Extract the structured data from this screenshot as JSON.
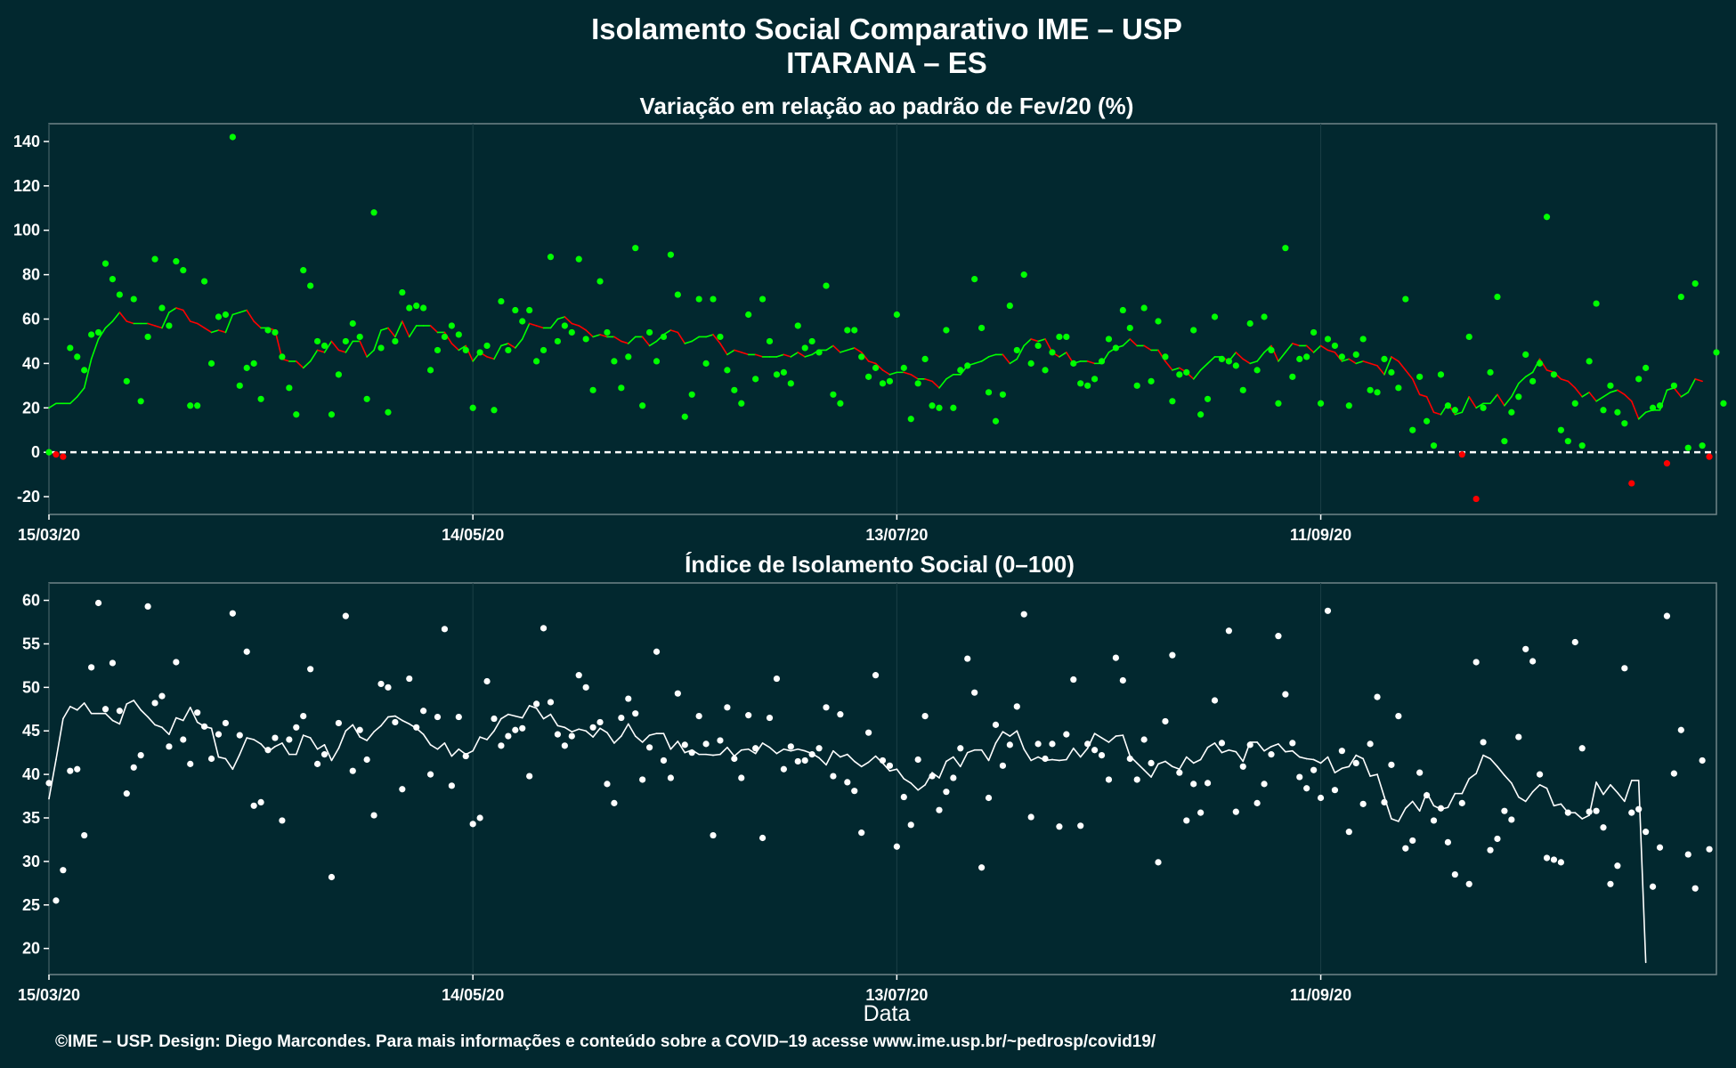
{
  "title_line1": "Isolamento Social Comparativo IME – USP",
  "title_line2": "ITARANA – ES",
  "xlabel": "Data",
  "footer": "©IME – USP. Design: Diego Marcondes. Para mais informações e conteúdo sobre a COVID–19 acesse www.ime.usp.br/~pedrosp/covid19/",
  "colors": {
    "background": "#02282f",
    "positive": "#00ff00",
    "negative": "#ff0000",
    "index_series": "#ffffff",
    "panel_border": "#6f8488",
    "grid": "#1b3f46"
  },
  "chart_data": [
    {
      "type": "scatter",
      "title": "Variação em relação ao padrão de Fev/20 (%)",
      "x_start": "15/03/20",
      "x_ticks": [
        {
          "day": 0,
          "label": "15/03/20"
        },
        {
          "day": 60,
          "label": "14/05/20"
        },
        {
          "day": 120,
          "label": "13/07/20"
        },
        {
          "day": 180,
          "label": "11/09/20"
        }
      ],
      "xlim": [
        0,
        236
      ],
      "ylim": [
        -28,
        148
      ],
      "y_ticks": [
        -20,
        0,
        20,
        40,
        60,
        80,
        100,
        120,
        140
      ],
      "reference_line": 0,
      "series": [
        {
          "kind": "points",
          "values": [
            0,
            -1,
            -2,
            47,
            43,
            37,
            53,
            54,
            85,
            78,
            71,
            32,
            69,
            23,
            52,
            87,
            65,
            57,
            86,
            82,
            21,
            21,
            77,
            40,
            61,
            62,
            142,
            30,
            38,
            40,
            24,
            55,
            54,
            43,
            29,
            17,
            82,
            75,
            50,
            48,
            17,
            35,
            50,
            58,
            52,
            24,
            108,
            47,
            18,
            50,
            72,
            65,
            66,
            65,
            37,
            46,
            52,
            57,
            53,
            46,
            20,
            45,
            48,
            19,
            68,
            46,
            64,
            59,
            64,
            41,
            46,
            88,
            50,
            57,
            54,
            87,
            51,
            28,
            77,
            54,
            41,
            29,
            43,
            92,
            21,
            54,
            41,
            52,
            89,
            71,
            16,
            26,
            69,
            40,
            69,
            52,
            37,
            28,
            22,
            62,
            33,
            69,
            50,
            35,
            36,
            31,
            57,
            47,
            50,
            45,
            75,
            26,
            22,
            55,
            55,
            43,
            34,
            38,
            31,
            32,
            62,
            38,
            15,
            31,
            42,
            21,
            20,
            55,
            20,
            37,
            39,
            78,
            56,
            27,
            14,
            26,
            66,
            46,
            80,
            40,
            48,
            37,
            45,
            52,
            52,
            40,
            31,
            30,
            33,
            41,
            51,
            47,
            64,
            56,
            30,
            65,
            32,
            59,
            43,
            23,
            35,
            36,
            55,
            17,
            24,
            61,
            42,
            41,
            39,
            28,
            58,
            37,
            61,
            46,
            22,
            92,
            34,
            42,
            43,
            54,
            22,
            51,
            48,
            43,
            21,
            44,
            51,
            28,
            27,
            42,
            36,
            29,
            69,
            10,
            34,
            14,
            3,
            35,
            21,
            19,
            -1,
            52,
            -21,
            20,
            36,
            70,
            5,
            18,
            25,
            44,
            32,
            40,
            106,
            35,
            10,
            5,
            22,
            3,
            41,
            67,
            19,
            30,
            18,
            13,
            -14,
            33,
            38,
            20,
            21,
            -5,
            30,
            70,
            2,
            76,
            3,
            -2,
            45,
            22
          ]
        },
        {
          "kind": "moving_average",
          "values": [
            20,
            22,
            22,
            22,
            25,
            29,
            42,
            51,
            56,
            59,
            63,
            59,
            58,
            58,
            58,
            57,
            56,
            63,
            65,
            64,
            59,
            58,
            56,
            54,
            55,
            54,
            62,
            63,
            64,
            59,
            56,
            56,
            55,
            42,
            41,
            41,
            38,
            41,
            46,
            45,
            50,
            46,
            45,
            50,
            50,
            43,
            46,
            55,
            56,
            52,
            59,
            52,
            57,
            57,
            57,
            54,
            54,
            49,
            46,
            48,
            41,
            45,
            43,
            42,
            48,
            49,
            47,
            51,
            58,
            57,
            56,
            56,
            60,
            61,
            58,
            57,
            55,
            52,
            53,
            52,
            52,
            50,
            49,
            52,
            52,
            48,
            50,
            53,
            55,
            54,
            49,
            50,
            52,
            52,
            53,
            49,
            44,
            46,
            45,
            44,
            44,
            43,
            43,
            43,
            44,
            43,
            45,
            43,
            44,
            46,
            46,
            48,
            45,
            46,
            47,
            45,
            41,
            40,
            37,
            35,
            36,
            36,
            35,
            33,
            33,
            32,
            29,
            33,
            35,
            35,
            39,
            40,
            41,
            43,
            44,
            44,
            40,
            42,
            48,
            51,
            50,
            51,
            45,
            43,
            45,
            40,
            41,
            41,
            40,
            40,
            45,
            47,
            48,
            51,
            48,
            48,
            46,
            46,
            41,
            37,
            38,
            36,
            33,
            37,
            40,
            43,
            43,
            41,
            45,
            42,
            40,
            41,
            45,
            48,
            41,
            45,
            49,
            48,
            48,
            45,
            48,
            46,
            45,
            41,
            42,
            40,
            41,
            40,
            39,
            35,
            43,
            41,
            37,
            33,
            26,
            25,
            18,
            17,
            22,
            17,
            18,
            25,
            20,
            22,
            22,
            26,
            21,
            25,
            31,
            34,
            36,
            42,
            37,
            36,
            33,
            32,
            29,
            25,
            27,
            23,
            25,
            27,
            28,
            26,
            23,
            15,
            18,
            19,
            19,
            28,
            29,
            25,
            27,
            33,
            32
          ]
        }
      ]
    },
    {
      "type": "scatter",
      "title": "Índice de Isolamento Social (0–100)",
      "x_start": "15/03/20",
      "x_ticks": [
        {
          "day": 0,
          "label": "15/03/20"
        },
        {
          "day": 60,
          "label": "14/05/20"
        },
        {
          "day": 120,
          "label": "13/07/20"
        },
        {
          "day": 180,
          "label": "11/09/20"
        }
      ],
      "xlim": [
        0,
        236
      ],
      "ylim": [
        17,
        62
      ],
      "y_ticks": [
        20,
        25,
        30,
        35,
        40,
        45,
        50,
        55,
        60
      ],
      "series": [
        {
          "kind": "points",
          "values": [
            39.0,
            25.5,
            29.0,
            40.4,
            40.6,
            33.0,
            52.3,
            59.7,
            47.5,
            52.8,
            47.3,
            37.8,
            40.8,
            42.2,
            59.3,
            48.2,
            49.0,
            43.2,
            52.9,
            44.0,
            41.2,
            47.1,
            45.5,
            41.8,
            44.6,
            45.9,
            58.5,
            44.5,
            54.1,
            36.4,
            36.8,
            42.8,
            44.2,
            34.7,
            44.0,
            45.4,
            46.7,
            52.1,
            41.2,
            42.3,
            28.2,
            45.9,
            58.2,
            40.4,
            45.1,
            41.7,
            35.3,
            50.4,
            50.0,
            46.0,
            38.3,
            51.0,
            45.4,
            47.3,
            40.0,
            46.6,
            56.7,
            38.7,
            46.6,
            42.1,
            34.3,
            35.0,
            50.7,
            46.4,
            43.3,
            44.4,
            45.1,
            45.3,
            39.8,
            48.1,
            56.8,
            48.3,
            44.6,
            43.3,
            44.4,
            51.4,
            50.0,
            45.4,
            46.0,
            38.9,
            36.7,
            46.5,
            48.7,
            47.0,
            39.4,
            43.1,
            54.1,
            41.6,
            39.6,
            49.3,
            43.4,
            42.5,
            46.7,
            43.5,
            33.0,
            43.9,
            47.7,
            41.8,
            39.6,
            46.8,
            43.0,
            32.7,
            46.5,
            51.0,
            40.6,
            43.2,
            41.5,
            41.6,
            42.3,
            43.0,
            47.7,
            39.8,
            46.9,
            39.1,
            38.1,
            33.3,
            44.8,
            51.4,
            41.6,
            41.0,
            31.7,
            37.4,
            34.2,
            41.7,
            46.7,
            39.8,
            35.9,
            38.0,
            39.6,
            43.0,
            53.3,
            49.4,
            29.3,
            37.3,
            45.7,
            41.0,
            43.4,
            47.8,
            58.4,
            35.1,
            43.5,
            41.8,
            43.5,
            34.0,
            44.6,
            50.9,
            34.1,
            43.5,
            42.8,
            42.2,
            39.4,
            53.4,
            50.8,
            41.8,
            39.4,
            44.0,
            41.3,
            29.9,
            46.1,
            53.7,
            40.2,
            34.7,
            38.9,
            35.6,
            39.0,
            48.5,
            43.6,
            56.5,
            35.7,
            40.9,
            43.4,
            36.7,
            38.9,
            42.3,
            55.9,
            49.2,
            43.6,
            39.7,
            38.4,
            40.5,
            37.3,
            58.8,
            38.2,
            42.7,
            33.4,
            41.3,
            36.6,
            43.5,
            48.9,
            36.8,
            41.1,
            46.7,
            31.5,
            32.4,
            40.2,
            37.6,
            34.7,
            36.1,
            32.2,
            28.5,
            36.7,
            27.4,
            52.9,
            43.7,
            31.3,
            32.6,
            35.8,
            34.8,
            44.3,
            54.4,
            53.0,
            40.0,
            30.4,
            30.2,
            29.9,
            35.6,
            55.2,
            43.0,
            35.7,
            35.8,
            33.9,
            27.4,
            29.5,
            52.2,
            35.6,
            36.0,
            33.4,
            27.1,
            31.6,
            58.2,
            40.1,
            45.1,
            30.8,
            26.9,
            41.6,
            31.4
          ]
        },
        {
          "kind": "moving_average",
          "values": [
            37.2,
            41.7,
            46.4,
            47.8,
            47.4,
            48.2,
            47.0,
            47.0,
            47.0,
            46.2,
            45.8,
            48.1,
            48.5,
            47.4,
            46.6,
            45.7,
            45.4,
            44.6,
            46.5,
            46.2,
            47.7,
            46.0,
            45.5,
            45.3,
            42.0,
            41.8,
            40.6,
            42.3,
            44.2,
            44.0,
            43.5,
            42.6,
            43.2,
            43.6,
            42.3,
            42.3,
            44.5,
            44.2,
            42.9,
            43.4,
            41.6,
            43.0,
            45.0,
            45.7,
            44.3,
            43.9,
            44.9,
            45.6,
            46.6,
            46.7,
            46.2,
            45.8,
            45.3,
            44.6,
            43.4,
            42.9,
            43.6,
            42.1,
            42.9,
            42.3,
            42.7,
            44.3,
            44.0,
            45.0,
            46.4,
            46.9,
            46.7,
            46.5,
            47.9,
            47.6,
            46.4,
            46.9,
            45.6,
            45.4,
            44.9,
            45.2,
            45.0,
            44.3,
            45.3,
            44.8,
            43.6,
            44.4,
            45.8,
            44.4,
            43.7,
            44.5,
            44.7,
            44.7,
            42.9,
            43.8,
            42.5,
            42.8,
            42.3,
            42.3,
            42.2,
            42.3,
            43.1,
            42.1,
            42.8,
            42.9,
            42.4,
            43.6,
            43.1,
            42.4,
            42.9,
            42.7,
            42.9,
            42.7,
            42.4,
            41.9,
            41.1,
            42.7,
            42.0,
            42.3,
            41.5,
            40.9,
            41.4,
            42.1,
            41.3,
            40.4,
            40.6,
            39.5,
            39.0,
            38.2,
            38.8,
            40.2,
            39.6,
            41.5,
            42.0,
            40.9,
            42.5,
            42.8,
            42.8,
            41.6,
            43.6,
            44.9,
            44.4,
            45.0,
            42.9,
            41.6,
            42.0,
            41.6,
            41.7,
            41.6,
            41.7,
            43.0,
            42.0,
            43.0,
            44.7,
            44.2,
            43.7,
            44.4,
            44.5,
            42.1,
            41.3,
            40.5,
            39.7,
            41.2,
            41.5,
            40.9,
            40.6,
            42.0,
            41.3,
            41.7,
            43.1,
            43.6,
            42.5,
            42.8,
            42.6,
            41.5,
            43.7,
            43.7,
            42.7,
            43.2,
            43.5,
            42.6,
            42.7,
            42.0,
            41.8,
            41.7,
            41.3,
            42.0,
            40.2,
            40.7,
            40.9,
            42.2,
            41.8,
            39.8,
            40.0,
            37.4,
            34.9,
            34.6,
            36.1,
            36.9,
            35.8,
            37.9,
            36.4,
            36.0,
            36.2,
            37.8,
            37.8,
            39.5,
            40.1,
            42.2,
            41.8,
            40.9,
            39.9,
            39.0,
            37.4,
            36.9,
            38.0,
            38.8,
            38.4,
            36.4,
            36.6,
            35.6,
            35.6,
            34.9,
            35.3,
            39.1,
            37.7,
            38.8,
            37.9,
            36.9,
            39.3,
            39.3,
            18.4
          ]
        }
      ]
    }
  ]
}
